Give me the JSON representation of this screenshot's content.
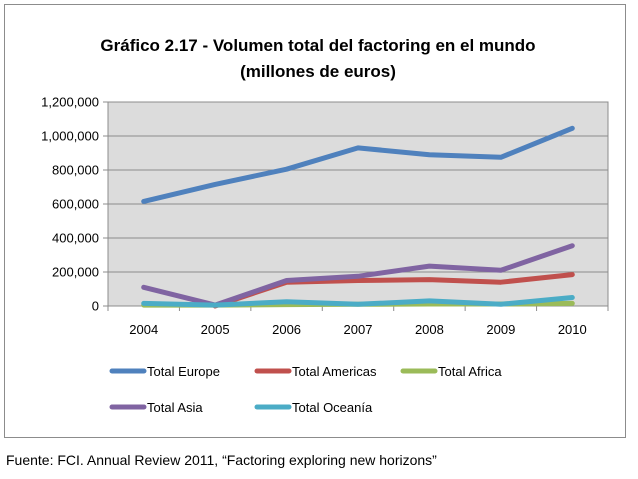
{
  "chart_data": {
    "type": "line",
    "title_line1": "Gráfico 2.17 - Volumen total del factoring en el mundo",
    "title_line2": "(millones de euros)",
    "x": [
      "2004",
      "2005",
      "2006",
      "2007",
      "2008",
      "2009",
      "2010"
    ],
    "ylim": [
      0,
      1200000
    ],
    "yticks": [
      0,
      200000,
      400000,
      600000,
      800000,
      1000000,
      1200000
    ],
    "ytick_labels": [
      "0",
      "200,000",
      "400,000",
      "600,000",
      "800,000",
      "1,000,000",
      "1,200,000"
    ],
    "grid": true,
    "legend_position": "bottom",
    "series": [
      {
        "name": "Total Europe",
        "color": "#4f81bd",
        "values": [
          615000,
          715000,
          805000,
          930000,
          890000,
          875000,
          1045000
        ]
      },
      {
        "name": "Total Americas",
        "color": "#c0504d",
        "values": [
          null,
          0,
          140000,
          150000,
          155000,
          140000,
          185000
        ]
      },
      {
        "name": "Total Africa",
        "color": "#9bbb59",
        "values": [
          5000,
          5000,
          8000,
          10000,
          12000,
          12000,
          15000
        ]
      },
      {
        "name": "Total Asia",
        "color": "#8064a2",
        "values": [
          110000,
          5000,
          150000,
          175000,
          235000,
          210000,
          355000
        ]
      },
      {
        "name": "Total Oceanía",
        "color": "#4bacc6",
        "values": [
          15000,
          5000,
          25000,
          10000,
          30000,
          10000,
          50000
        ]
      }
    ]
  },
  "source_note": "Fuente: FCI. Annual Review 2011, “Factoring exploring new horizons”"
}
